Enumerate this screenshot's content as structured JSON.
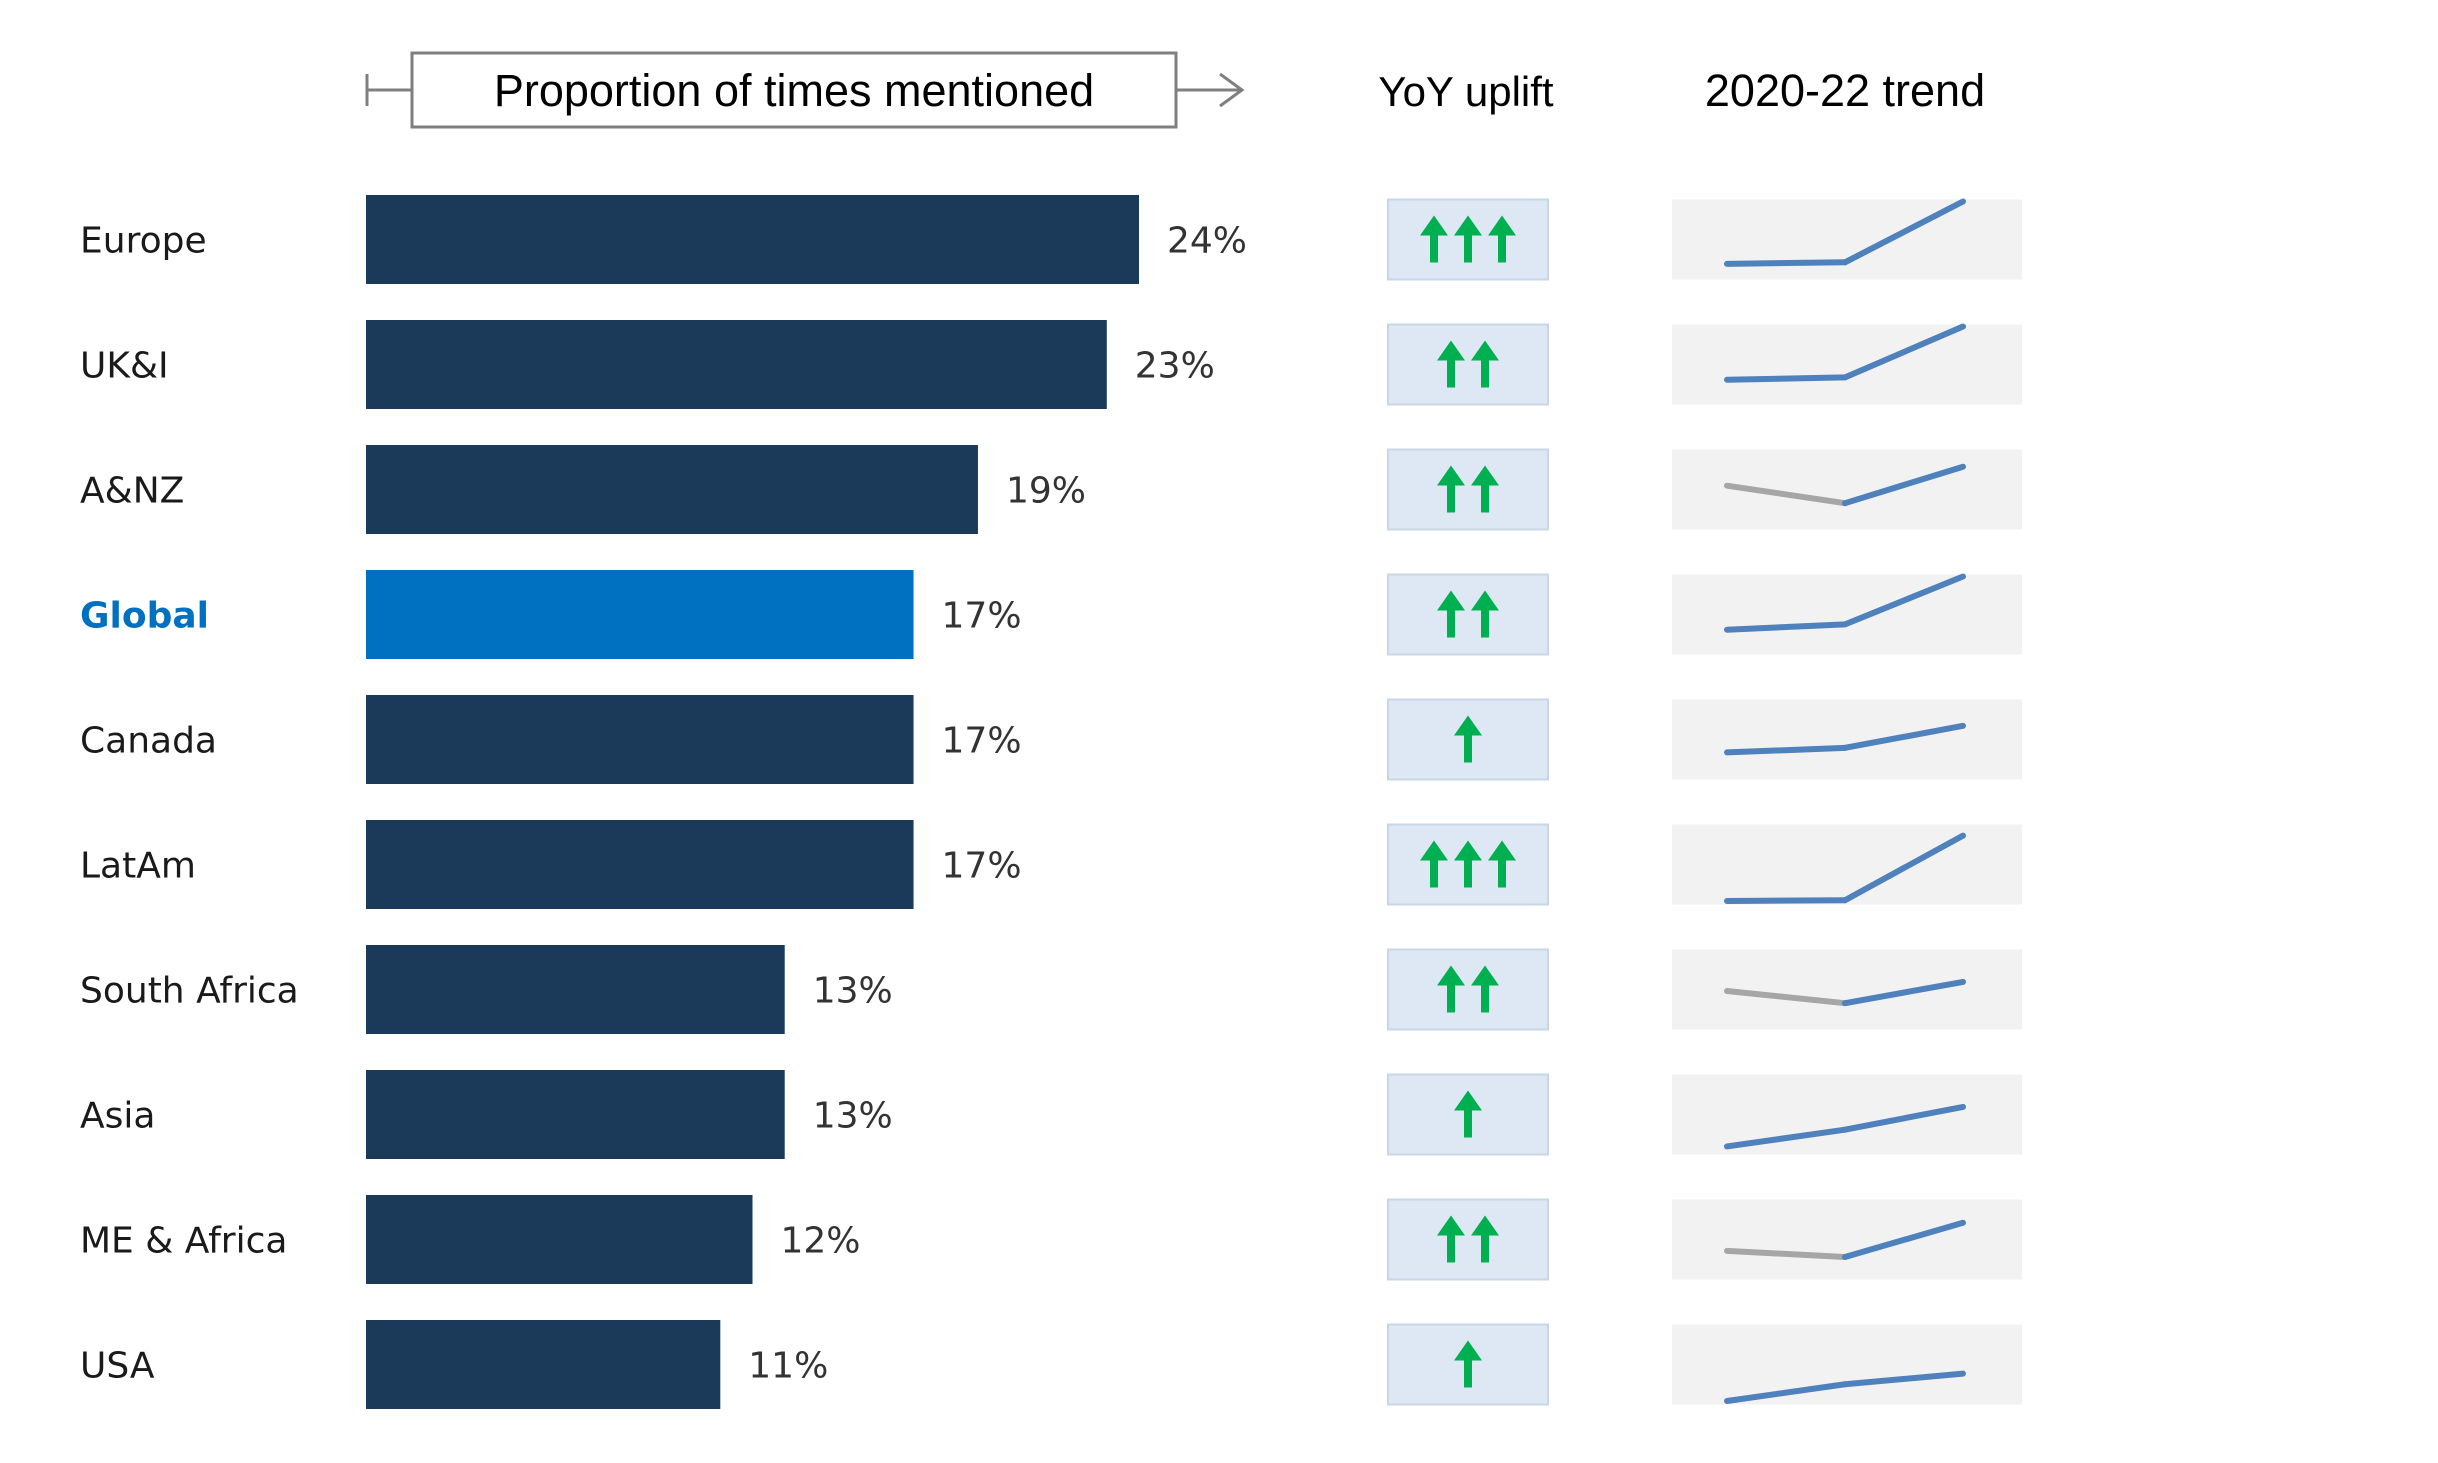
{
  "header": {
    "bar_title": "Proportion of times mentioned",
    "yoy_title": "YoY uplift",
    "trend_title": "2020-22 trend"
  },
  "colors": {
    "bar": "#1b3a5a",
    "bar_highlight": "#0070c0",
    "highlight_label": "#0070c0",
    "arrow": "#00b050",
    "yoy_box": "#dde8f4",
    "trend_bg": "#f2f2f2",
    "trend_up": "#4f81bd",
    "trend_down": "#a6a6a6"
  },
  "chart_data": {
    "type": "bar",
    "orientation": "horizontal",
    "categories": [
      "Europe",
      "UK&I",
      "A&NZ",
      "Global",
      "Canada",
      "LatAm",
      "South Africa",
      "Asia",
      "ME & Africa",
      "USA"
    ],
    "values": [
      24,
      23,
      19,
      17,
      17,
      17,
      13,
      13,
      12,
      11
    ],
    "value_labels": [
      "24%",
      "23%",
      "19%",
      "17%",
      "17%",
      "17%",
      "13%",
      "13%",
      "12%",
      "11%"
    ],
    "highlight": "Global",
    "title": "Proportion of times mentioned",
    "xlim": [
      0,
      24
    ],
    "yoy_uplift_arrows": [
      3,
      2,
      2,
      2,
      1,
      3,
      2,
      1,
      2,
      1
    ],
    "trend_2020_22": [
      {
        "category": "Europe",
        "values": [
          0.18,
          0.2,
          1.0
        ]
      },
      {
        "category": "UK&I",
        "values": [
          0.3,
          0.33,
          1.0
        ]
      },
      {
        "category": "A&NZ",
        "values": [
          0.55,
          0.32,
          0.8
        ]
      },
      {
        "category": "Global",
        "values": [
          0.3,
          0.37,
          1.0
        ]
      },
      {
        "category": "Canada",
        "values": [
          0.33,
          0.39,
          0.68
        ]
      },
      {
        "category": "LatAm",
        "values": [
          0.02,
          0.03,
          0.88
        ]
      },
      {
        "category": "South Africa",
        "values": [
          0.48,
          0.32,
          0.6
        ]
      },
      {
        "category": "Asia",
        "values": [
          0.08,
          0.3,
          0.6
        ]
      },
      {
        "category": "ME & Africa",
        "values": [
          0.35,
          0.27,
          0.72
        ]
      },
      {
        "category": "USA",
        "values": [
          0.02,
          0.24,
          0.38
        ]
      }
    ]
  }
}
